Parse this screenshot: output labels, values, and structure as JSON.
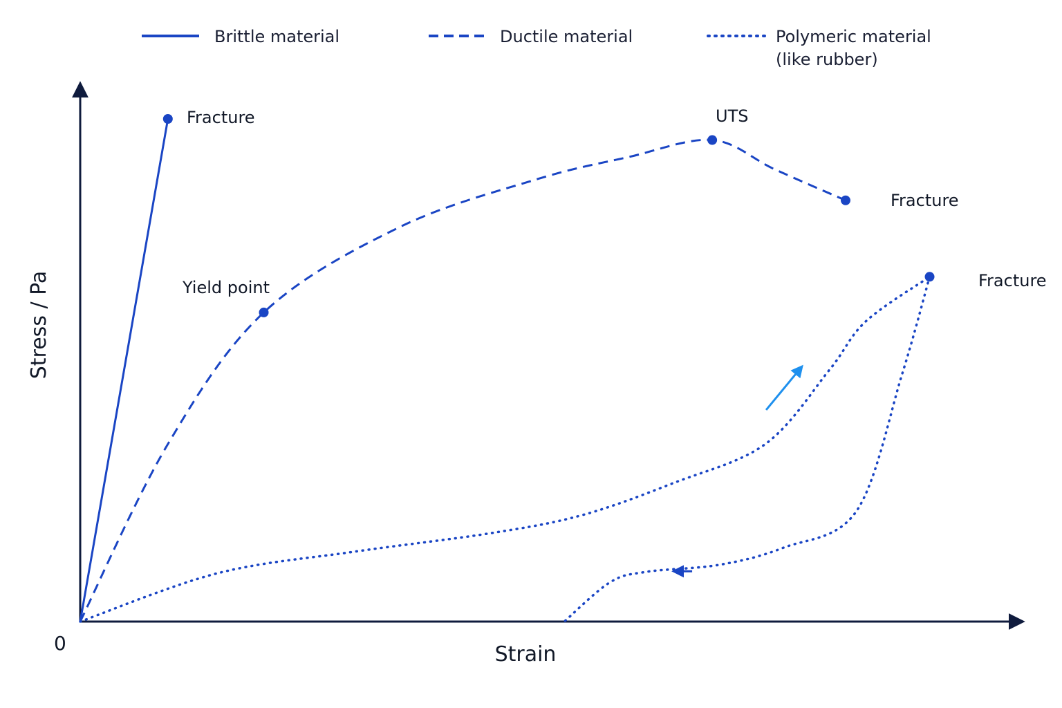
{
  "chart_data": {
    "type": "line",
    "title": "",
    "xlabel": "Strain",
    "ylabel": "Stress / Pa",
    "origin_label": "0",
    "xlim": [
      0,
      100
    ],
    "ylim": [
      0,
      100
    ],
    "grid": false,
    "legend_position": "top",
    "ticks": "none",
    "colors": {
      "series": "#1a45c4",
      "axis": "#0f1b3d",
      "up_arrow": "#1e90ee",
      "down_arrow": "#1a45c4"
    },
    "legend": [
      {
        "label": "Brittle material",
        "line_style": "solid"
      },
      {
        "label": "Ductile material",
        "line_style": "dashed"
      },
      {
        "label_lines": [
          "Polymeric material",
          "(like rubber)"
        ],
        "line_style": "dotted"
      }
    ],
    "series": [
      {
        "line_style": "solid",
        "x": [
          0,
          9.6
        ],
        "y": [
          0,
          100
        ],
        "points": [
          {
            "x": 9.6,
            "y": 100,
            "label": "Fracture"
          }
        ]
      },
      {
        "line_style": "dashed",
        "x": [
          0,
          9.5,
          20.1,
          35,
          50,
          60,
          69.2,
          76,
          83.8
        ],
        "y": [
          0,
          35,
          61.5,
          78.5,
          88,
          92.4,
          95.8,
          90,
          83.8
        ],
        "points": [
          {
            "x": 20.1,
            "y": 61.5,
            "label": "Yield point"
          },
          {
            "x": 69.2,
            "y": 95.8,
            "label": "UTS"
          },
          {
            "x": 83.8,
            "y": 83.8,
            "label": "Fracture"
          }
        ]
      },
      {
        "line_style": "dotted",
        "loading": {
          "x": [
            0,
            15,
            30,
            45,
            55,
            65,
            75,
            82,
            86,
            93
          ],
          "y": [
            0,
            9.6,
            13.9,
            17.6,
            21.2,
            27.6,
            35.3,
            50,
            59.7,
            68.6
          ]
        },
        "unloading": {
          "x": [
            93,
            90,
            85,
            77,
            70,
            62,
            58,
            53
          ],
          "y": [
            68.6,
            49.3,
            22,
            14.7,
            11.3,
            9.9,
            7.8,
            0
          ]
        },
        "points": [
          {
            "x": 93,
            "y": 68.6,
            "label": "Fracture"
          }
        ]
      }
    ],
    "annotations": [
      {
        "type": "arrow",
        "direction": "loading"
      },
      {
        "type": "arrow",
        "direction": "unloading"
      }
    ]
  }
}
